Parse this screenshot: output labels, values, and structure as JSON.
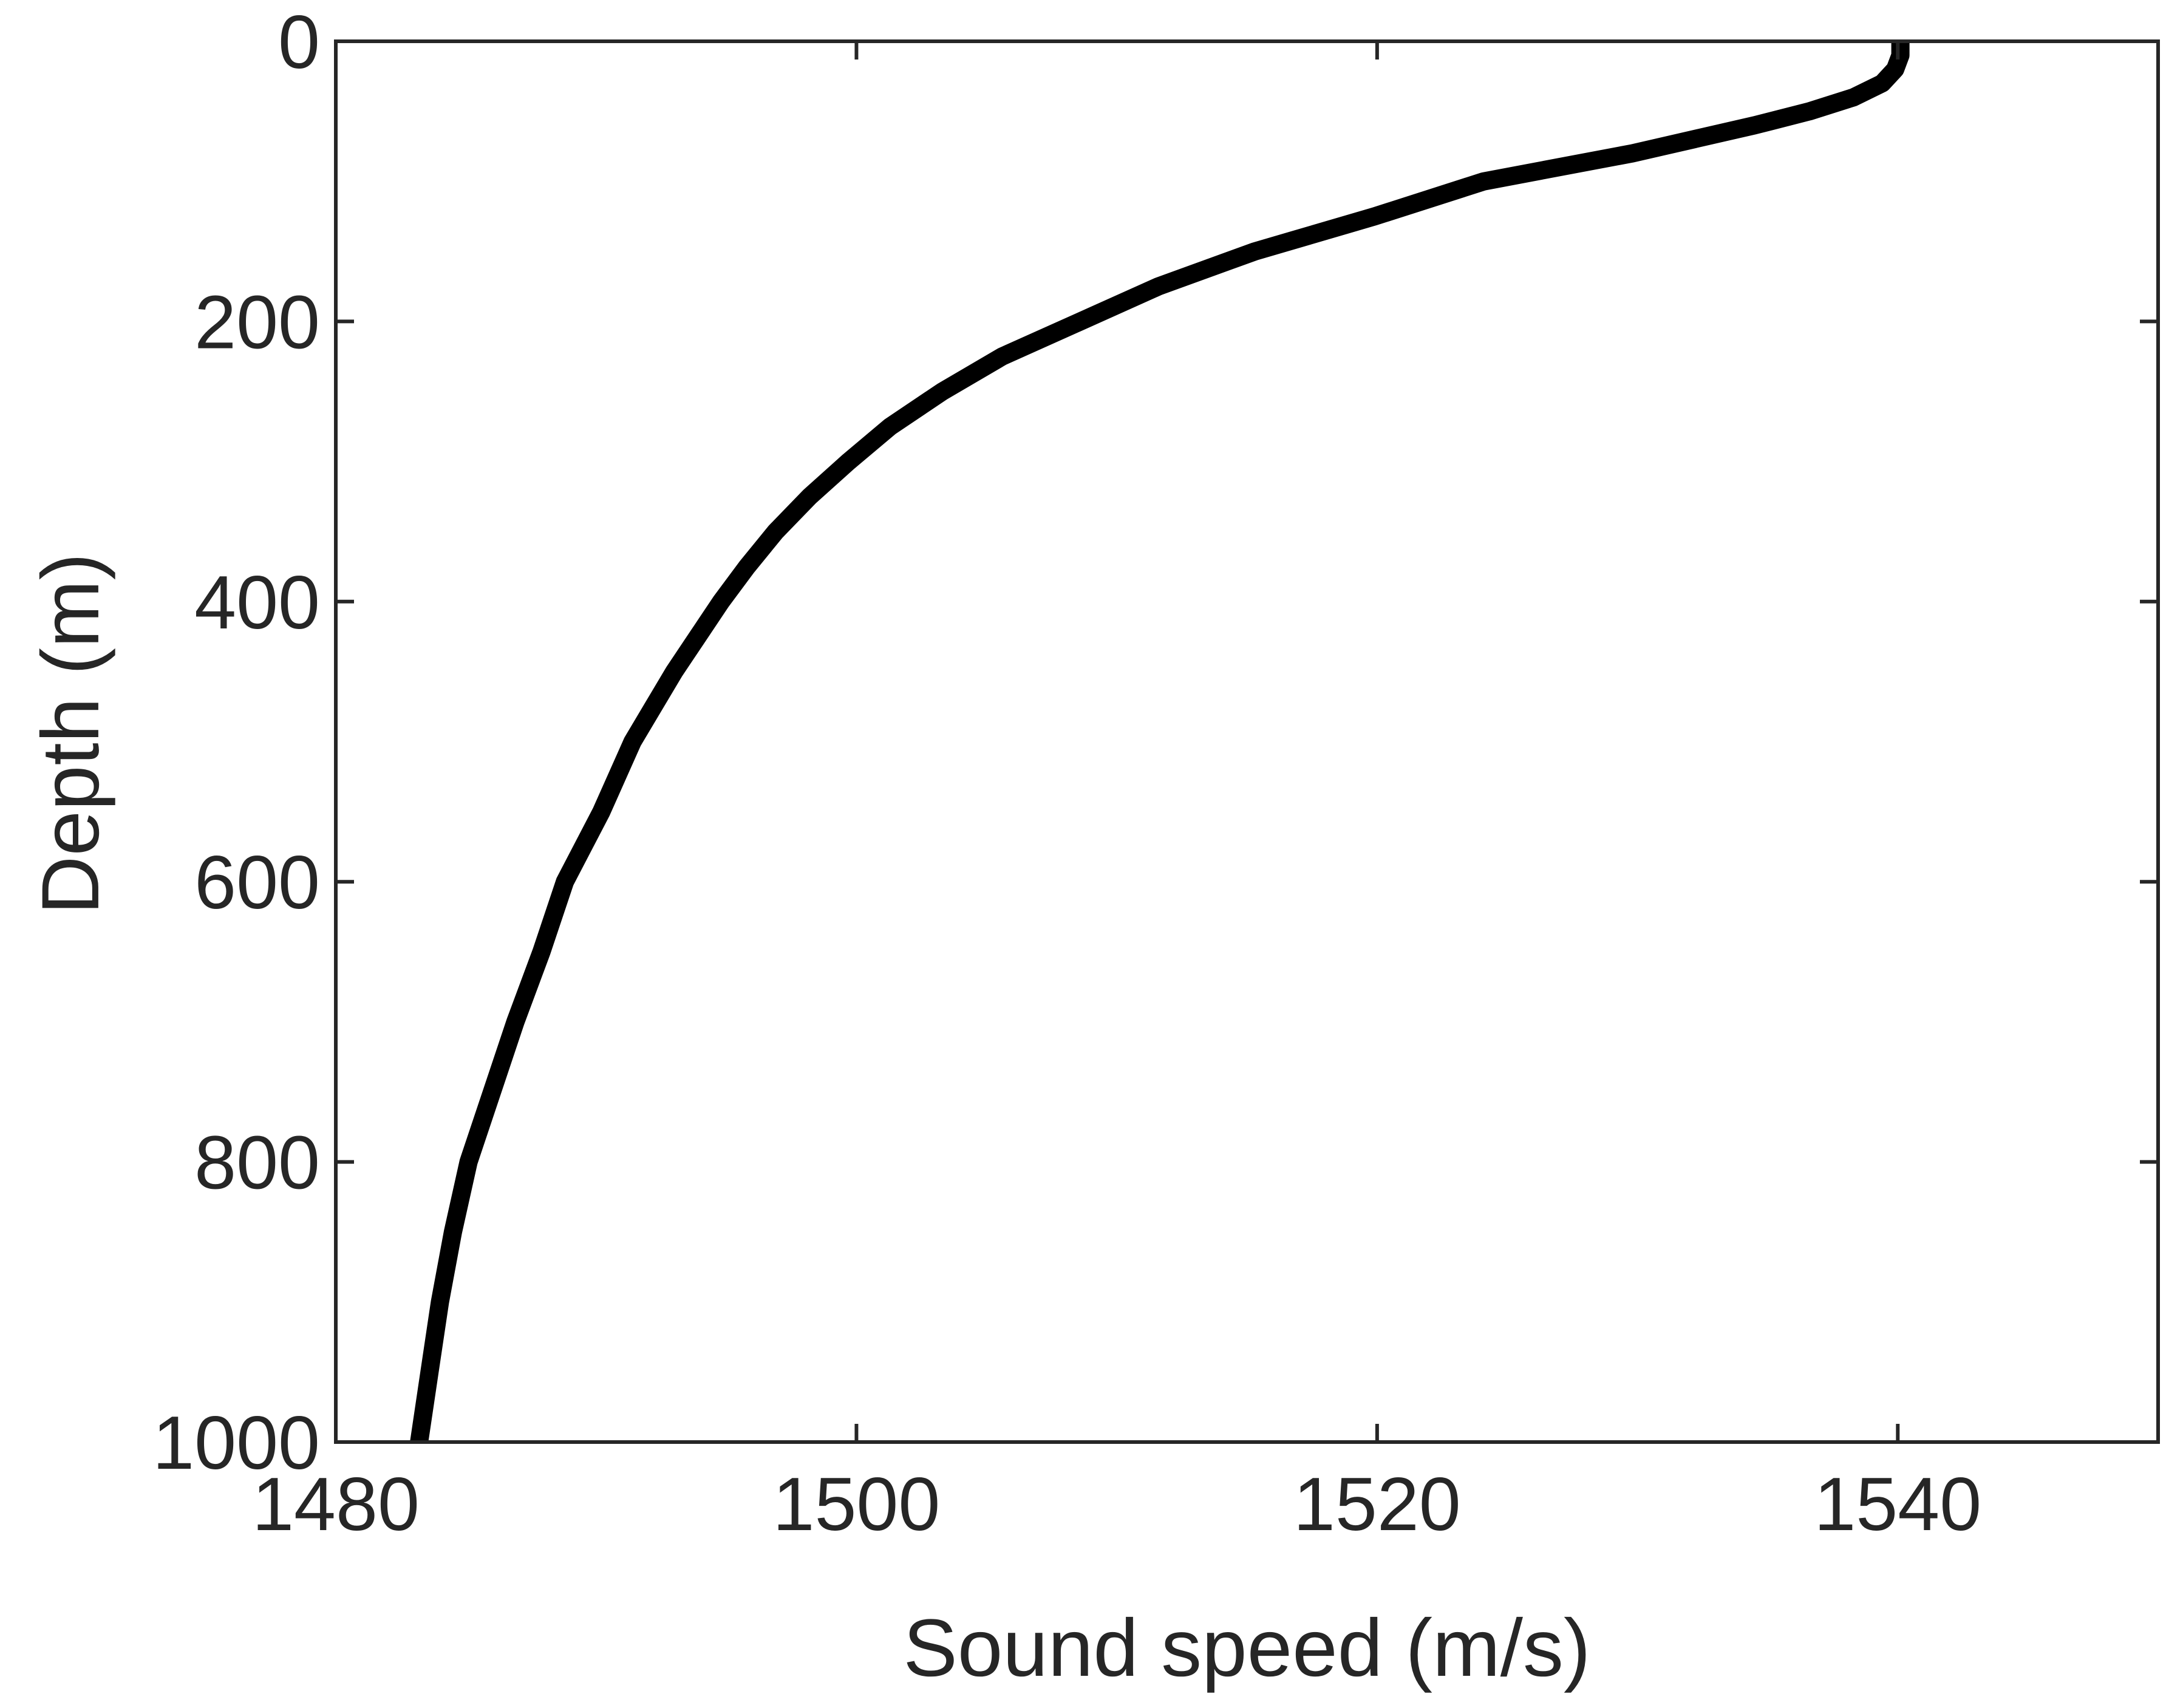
{
  "chart_data": {
    "type": "line",
    "title": "",
    "xlabel": "Sound speed (m/s)",
    "ylabel": "Depth (m)",
    "xlim": [
      1480,
      1550
    ],
    "ylim": [
      1000,
      0
    ],
    "y_axis_reversed": true,
    "xticks": [
      1480,
      1500,
      1520,
      1540
    ],
    "xtick_labels": [
      "1480",
      "1500",
      "1520",
      "1540"
    ],
    "yticks": [
      0,
      200,
      400,
      600,
      800,
      1000
    ],
    "ytick_labels": [
      "0",
      "200",
      "400",
      "600",
      "800",
      "1000"
    ],
    "grid": false,
    "box": true,
    "series": [
      {
        "color": "#000000",
        "x": [
          1540.1,
          1540.1,
          1539.9,
          1539.4,
          1538.3,
          1536.6,
          1534.5,
          1529.8,
          1524.1,
          1519.9,
          1515.3,
          1511.6,
          1508.6,
          1505.6,
          1503.3,
          1501.3,
          1499.7,
          1498.2,
          1496.9,
          1495.8,
          1494.8,
          1493.9,
          1493.0,
          1492.2,
          1491.4,
          1490.2,
          1488.8,
          1487.9,
          1486.9,
          1486.0,
          1485.1,
          1484.5,
          1484.0,
          1483.6,
          1483.2
        ],
        "y": [
          0,
          10,
          20,
          30,
          40,
          50,
          60,
          80,
          100,
          125,
          150,
          175,
          200,
          225,
          250,
          275,
          300,
          325,
          350,
          375,
          400,
          425,
          450,
          475,
          500,
          550,
          600,
          650,
          700,
          750,
          800,
          850,
          900,
          950,
          1000
        ]
      }
    ]
  }
}
